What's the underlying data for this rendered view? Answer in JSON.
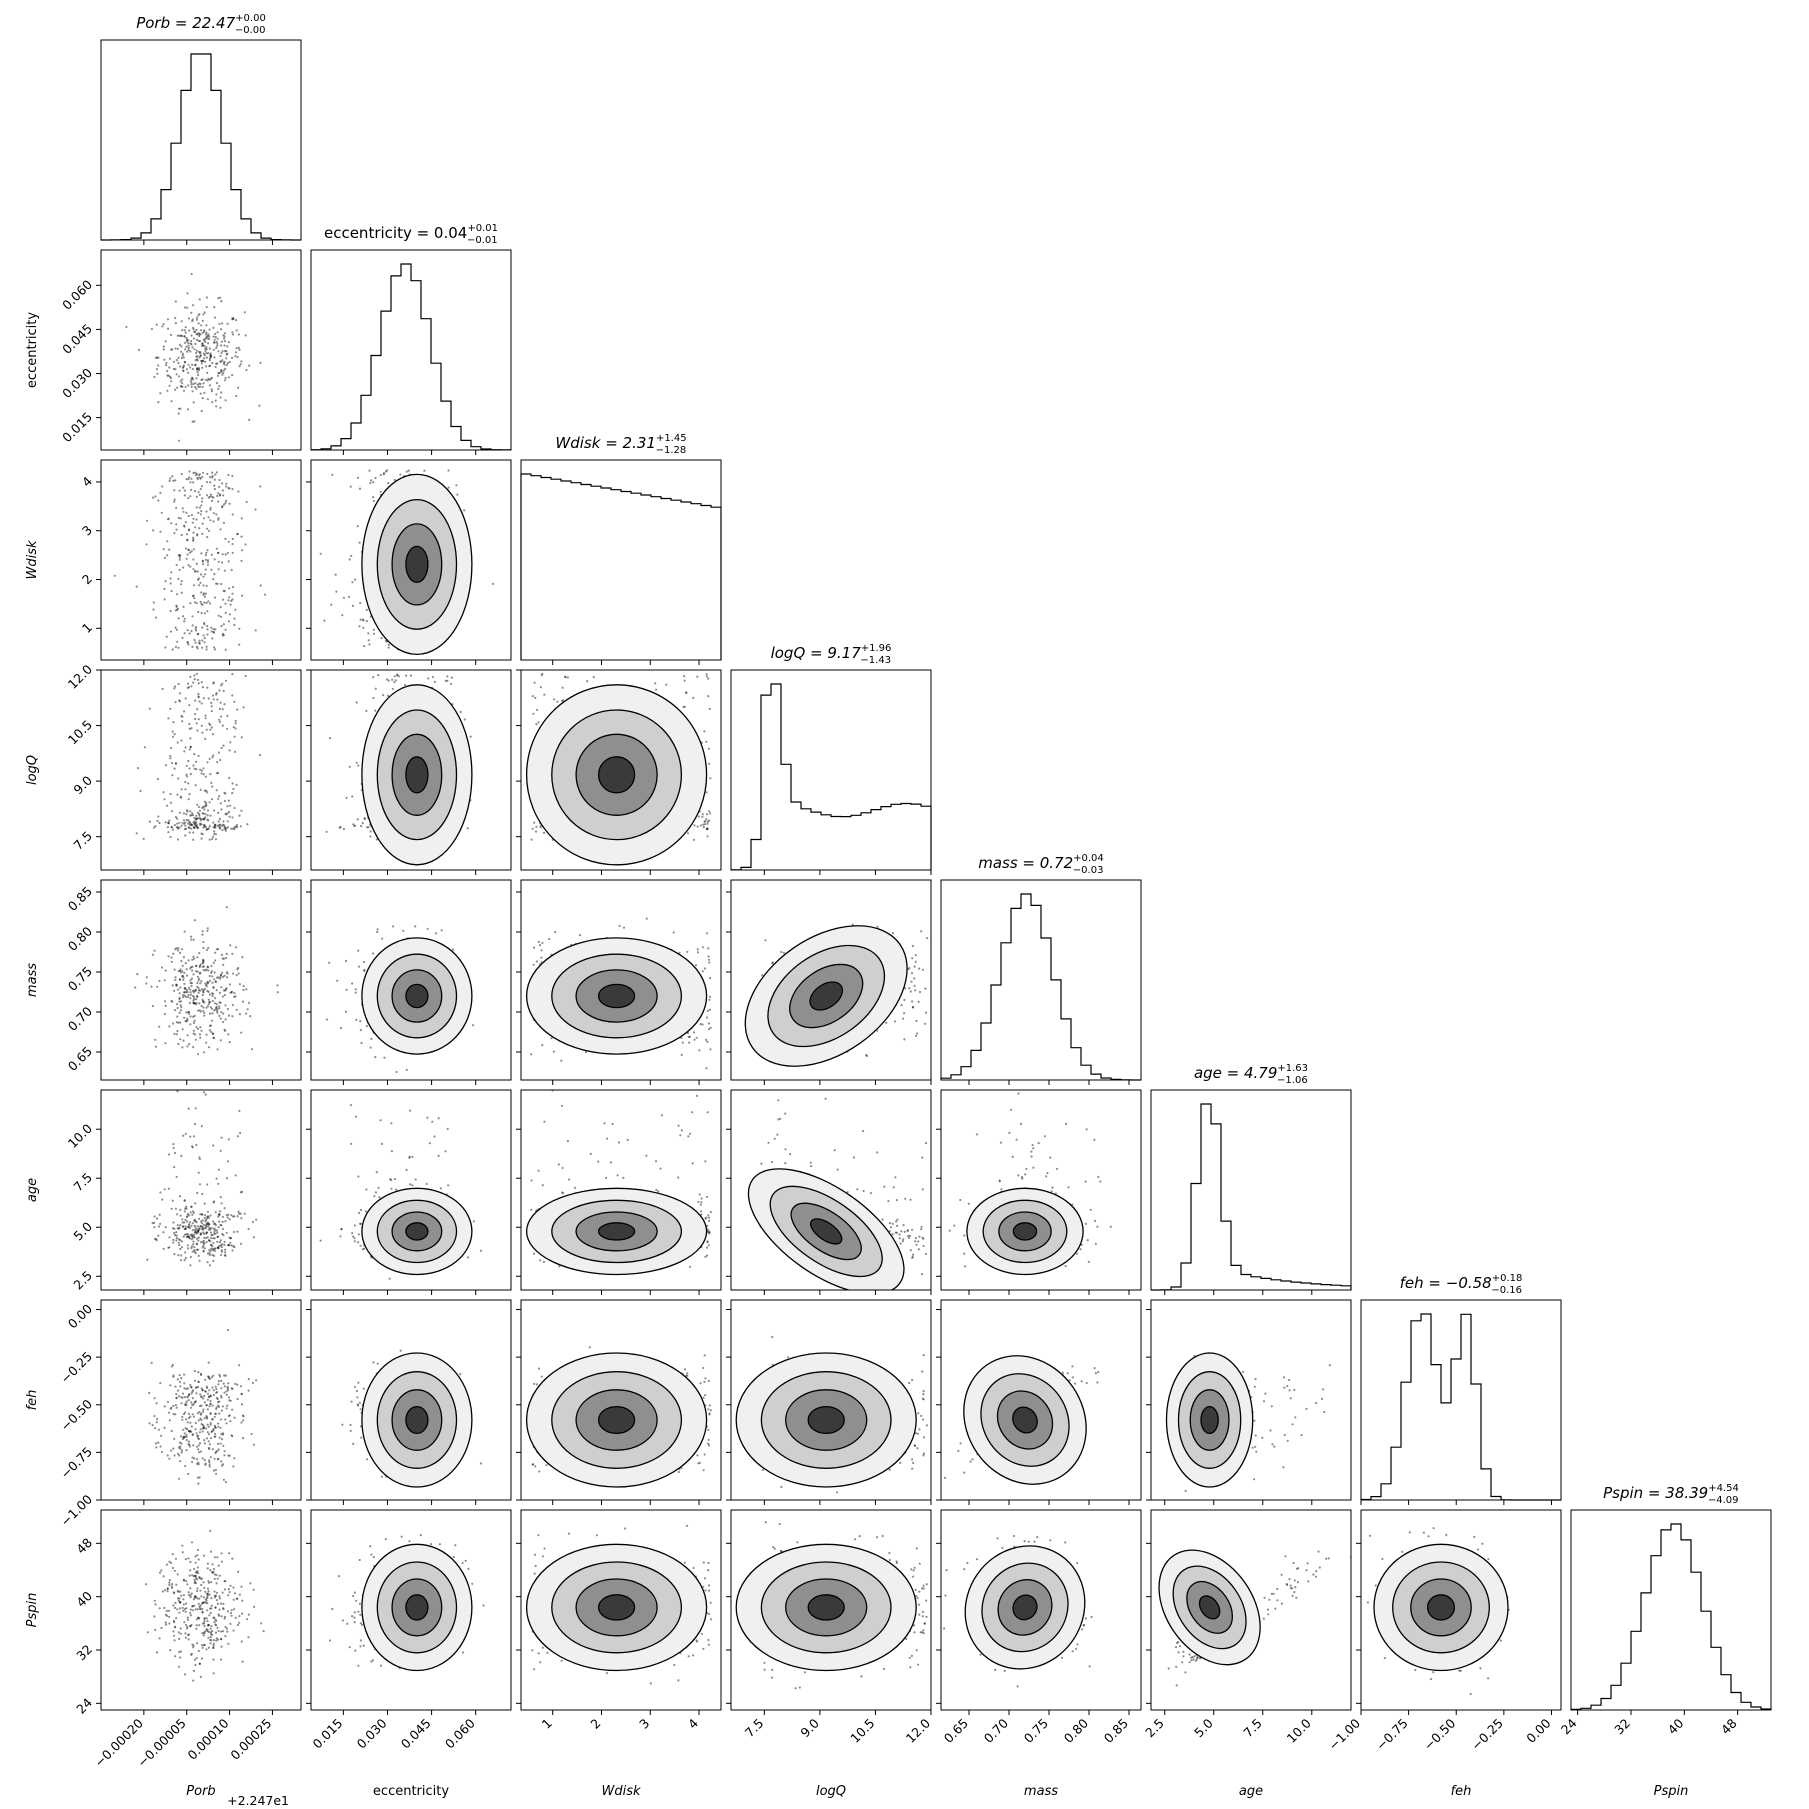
{
  "chart_data": {
    "type": "corner",
    "params": [
      {
        "key": "porb",
        "label": "Porb",
        "italic": true,
        "title_main": "Porb = 22.47",
        "title_plus": "+0.00",
        "title_minus": "−0.00",
        "median": 22.47,
        "err_plus": 0.0,
        "err_minus": 0.0,
        "range": [
          -0.00035,
          0.00035
        ],
        "ticks": [
          -0.0002,
          -5e-05,
          0.0001,
          0.00025
        ],
        "tick_labels": [
          "−0.00020",
          "−0.00005",
          "0.00010",
          "0.00025"
        ],
        "offset_label": "+2.247e1",
        "hist_shape": "normal",
        "center": 0.0,
        "sigma": 7.5e-05
      },
      {
        "key": "ecc",
        "label": "eccentricity",
        "italic": false,
        "title_main": "eccentricity = 0.04",
        "title_plus": "+0.01",
        "title_minus": "−0.01",
        "median": 0.04,
        "err_plus": 0.01,
        "err_minus": 0.01,
        "range": [
          0.004,
          0.072
        ],
        "ticks": [
          0.015,
          0.03,
          0.045,
          0.06
        ],
        "tick_labels": [
          "0.015",
          "0.030",
          "0.045",
          "0.060"
        ],
        "hist_shape": "normal",
        "center": 0.036,
        "sigma": 0.0085
      },
      {
        "key": "wdisk",
        "label": "Wdisk",
        "italic": true,
        "title_main": "Wdisk = 2.31",
        "title_plus": "+1.45",
        "title_minus": "−1.28",
        "median": 2.31,
        "err_plus": 1.45,
        "err_minus": 1.28,
        "range": [
          0.35,
          4.45
        ],
        "ticks": [
          1,
          2,
          3,
          4
        ],
        "tick_labels": [
          "1",
          "2",
          "3",
          "4"
        ],
        "hist_shape": "uniform",
        "center": 2.4,
        "sigma": 1.2
      },
      {
        "key": "logq",
        "label": "logQ",
        "italic": true,
        "title_main": "logQ = 9.17",
        "title_plus": "+1.96",
        "title_minus": "−1.43",
        "median": 9.17,
        "err_plus": 1.96,
        "err_minus": 1.43,
        "range": [
          6.6,
          12.0
        ],
        "ticks": [
          7.5,
          9.0,
          10.5,
          12.0
        ],
        "tick_labels": [
          "7.5",
          "9.0",
          "10.5",
          "12.0"
        ],
        "hist_shape": "peaked_low",
        "center": 7.7,
        "sigma": 1.5
      },
      {
        "key": "mass",
        "label": "mass",
        "italic": true,
        "title_main": "mass = 0.72",
        "title_plus": "+0.04",
        "title_minus": "−0.03",
        "median": 0.72,
        "err_plus": 0.04,
        "err_minus": 0.03,
        "range": [
          0.615,
          0.865
        ],
        "ticks": [
          0.65,
          0.7,
          0.75,
          0.8,
          0.85
        ],
        "tick_labels": [
          "0.65",
          "0.70",
          "0.75",
          "0.80",
          "0.85"
        ],
        "hist_shape": "normal",
        "center": 0.722,
        "sigma": 0.033
      },
      {
        "key": "age",
        "label": "age",
        "italic": true,
        "title_main": "age = 4.79",
        "title_plus": "+1.63",
        "title_minus": "−1.06",
        "median": 4.79,
        "err_plus": 1.63,
        "err_minus": 1.06,
        "range": [
          1.8,
          12.0
        ],
        "ticks": [
          2.5,
          5.0,
          7.5,
          10.0
        ],
        "tick_labels": [
          "2.5",
          "5.0",
          "7.5",
          "10.0"
        ],
        "hist_shape": "skewed",
        "center": 4.7,
        "sigma": 1.0
      },
      {
        "key": "feh",
        "label": "feh",
        "italic": true,
        "title_main": "feh = −0.58",
        "title_plus": "+0.18",
        "title_minus": "−0.16",
        "median": -0.58,
        "err_plus": 0.18,
        "err_minus": 0.16,
        "range": [
          -1.0,
          0.05
        ],
        "ticks": [
          -1.0,
          -0.75,
          -0.5,
          -0.25,
          0.0
        ],
        "tick_labels": [
          "−1.00",
          "−0.75",
          "−0.50",
          "−0.25",
          "0.00"
        ],
        "hist_shape": "bimodal",
        "center": -0.58,
        "sigma": 0.16
      },
      {
        "key": "pspin",
        "label": "Pspin",
        "italic": true,
        "title_main": "Pspin = 38.39",
        "title_plus": "+4.54",
        "title_minus": "−4.09",
        "median": 38.39,
        "err_plus": 4.54,
        "err_minus": 4.09,
        "range": [
          23.0,
          53.0
        ],
        "ticks": [
          24,
          32,
          40,
          48
        ],
        "tick_labels": [
          "24",
          "32",
          "40",
          "48"
        ],
        "hist_shape": "normal",
        "center": 38.4,
        "sigma": 4.3
      }
    ],
    "correlations": {
      "mass|feh": 0.55,
      "age|pspin": 0.6,
      "logq|mass": 0.1,
      "logq|age": -0.2,
      "mass|pspin": -0.05,
      "feh|pspin": 0.0
    }
  }
}
